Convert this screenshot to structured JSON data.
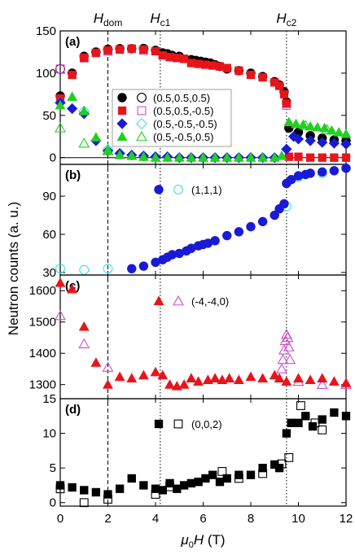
{
  "chart_data": {
    "type": "scatter",
    "xlabel": "μ0H (T)",
    "ylabel": "Neutron counts (a. u.)",
    "xlim": [
      0,
      12
    ],
    "xticks": [
      0,
      2,
      4,
      6,
      8,
      10,
      12
    ],
    "field_markers": [
      {
        "label": "H",
        "sub": "dom",
        "x": 2.0,
        "style": "dashed"
      },
      {
        "label": "H",
        "sub": "c1",
        "x": 4.2,
        "style": "dotted"
      },
      {
        "label": "H",
        "sub": "c2",
        "x": 9.5,
        "style": "dotted"
      }
    ],
    "panels": [
      {
        "label": "(a)",
        "ylim": [
          -8,
          150
        ],
        "yticks": [
          0,
          50,
          100,
          150
        ],
        "zero_line": true,
        "legend": {
          "position": "middle"
        },
        "series": [
          {
            "name": "(0.5,0.5,0.5)",
            "color": "#000000",
            "marker": "circle",
            "filled_x": [
              0,
              0.5,
              1,
              1.5,
              2,
              2.5,
              3,
              3.5,
              4,
              4.3,
              4.5,
              4.7,
              5,
              5.5,
              5.7,
              5.9,
              6.1,
              6.3,
              6.5,
              6.7,
              7,
              7.5,
              8,
              8.5,
              9,
              9.2,
              9.4,
              9.5,
              9.6,
              10,
              10.5,
              11,
              11.5,
              12
            ],
            "filled_y": [
              73,
              100,
              120,
              125,
              128,
              129,
              129,
              129,
              127,
              124,
              123,
              121,
              120,
              116,
              115,
              114,
              113,
              112,
              110,
              108,
              105,
              103,
              100,
              96,
              90,
              86,
              78,
              66,
              35,
              30,
              26,
              23,
              21,
              20
            ],
            "open_x": [
              0,
              2,
              3.5
            ],
            "open_y": [
              105,
              128,
              129
            ]
          },
          {
            "name": "(0.5,0.5,-0.5)",
            "color": "#e8141c",
            "open_color": "#d04cd0",
            "marker": "square",
            "filled_x": [
              0,
              0.5,
              1,
              1.5,
              2,
              2.5,
              3,
              3.5,
              4,
              4.3,
              4.6,
              4.9,
              5.2,
              5.5,
              5.8,
              6.1,
              6.4,
              6.7,
              7,
              7.5,
              8,
              8.5,
              9,
              9.2,
              9.4,
              9.5,
              9.6,
              10,
              10.5,
              11,
              11.5,
              12
            ],
            "filled_y": [
              70,
              98,
              118,
              124,
              127,
              128,
              129,
              128,
              126,
              121,
              119,
              118,
              117,
              112,
              111,
              110,
              109,
              108,
              106,
              103,
              98,
              95,
              89,
              85,
              75,
              64,
              1,
              1,
              0,
              0,
              0,
              0
            ],
            "open_x": [
              0,
              1,
              2,
              3.5,
              9.5
            ],
            "open_y": [
              105,
              118,
              126,
              127,
              62
            ]
          },
          {
            "name": "(0.5,-0.5,-0.5)",
            "color": "#1a1ad6",
            "open_color": "#3fe0e0",
            "marker": "diamond",
            "filled_x": [
              0,
              0.5,
              1,
              1.5,
              2,
              2.5,
              3,
              3.5,
              4,
              4.5,
              5,
              5.5,
              6,
              6.5,
              7,
              7.5,
              8,
              8.5,
              9,
              9.5,
              9.8,
              10,
              10.5,
              11,
              11.5,
              12
            ],
            "filled_y": [
              65,
              58,
              52,
              20,
              8,
              5,
              3,
              2,
              1,
              1,
              0,
              0,
              0,
              0,
              0,
              0,
              0,
              0,
              0,
              10,
              25,
              22,
              20,
              18,
              17,
              16
            ],
            "open_x": [
              0,
              1,
              2
            ],
            "open_y": [
              65,
              55,
              10
            ]
          },
          {
            "name": "(0.5,-0.5,0.5)",
            "color": "#22d022",
            "marker": "triangle",
            "filled_x": [
              0,
              0.5,
              1,
              1.5,
              2,
              2.5,
              3,
              3.5,
              4,
              4.5,
              5,
              5.5,
              6,
              6.5,
              7,
              7.5,
              8,
              8.5,
              9,
              9.3,
              9.6,
              9.9,
              10.2,
              10.5,
              10.8,
              11.1,
              11.4,
              11.7,
              12
            ],
            "filled_y": [
              62,
              72,
              55,
              24,
              9,
              3,
              2,
              1,
              0,
              0,
              0,
              0,
              0,
              0,
              0,
              0,
              0,
              0,
              0,
              2,
              42,
              40,
              39,
              37,
              36,
              35,
              32,
              30,
              28
            ],
            "open_x": [
              0,
              1,
              2,
              10.3,
              11.2
            ],
            "open_y": [
              35,
              17,
              8,
              38,
              33
            ]
          }
        ]
      },
      {
        "label": "(b)",
        "ylim": [
          28,
          115
        ],
        "yticks": [
          30,
          60,
          90
        ],
        "legend": {
          "position": "top-middle"
        },
        "series": [
          {
            "name": "(1,1,1)",
            "color": "#1a1ad6",
            "open_color": "#3fe0e0",
            "marker": "circle",
            "filled_x": [
              3,
              3.5,
              4,
              4.3,
              4.5,
              4.7,
              5,
              5.3,
              5.5,
              5.8,
              6,
              6.2,
              6.5,
              7,
              7.5,
              8,
              8.5,
              9,
              9.2,
              9.4,
              9.5,
              9.7,
              10,
              10.3,
              10.5,
              11,
              11.5,
              12
            ],
            "filled_y": [
              33,
              35,
              38,
              40,
              42,
              44,
              45,
              47,
              49,
              51,
              52,
              53,
              55,
              59,
              62,
              66,
              70,
              75,
              80,
              84,
              100,
              103,
              106,
              107,
              108,
              109,
              110,
              112
            ],
            "open_x": [
              0,
              1,
              2,
              9.5,
              10,
              11
            ],
            "open_y": [
              33,
              32,
              33,
              82,
              105,
              108
            ]
          }
        ]
      },
      {
        "label": "(c)",
        "ylim": [
          1255,
          1650
        ],
        "yticks": [
          1300,
          1400,
          1500,
          1600
        ],
        "legend": {
          "position": "top-middle"
        },
        "series": [
          {
            "name": "(-4,-4,0)",
            "color": "#e8141c",
            "open_color": "#d04cd0",
            "marker": "triangle",
            "filled_x": [
              0,
              0.5,
              1,
              1.5,
              2,
              2.5,
              3,
              3.5,
              4,
              4.3,
              4.6,
              4.9,
              5.2,
              5.5,
              5.8,
              6.2,
              6.5,
              6.8,
              7.1,
              7.5,
              8,
              8.5,
              9,
              9.2,
              9.5,
              10,
              10.5,
              11,
              11.5,
              12
            ],
            "filled_y": [
              1625,
              1605,
              1485,
              1370,
              1300,
              1325,
              1320,
              1330,
              1340,
              1330,
              1300,
              1295,
              1300,
              1320,
              1310,
              1315,
              1320,
              1315,
              1320,
              1315,
              1325,
              1320,
              1330,
              1320,
              1310,
              1320,
              1315,
              1320,
              1310,
              1305
            ],
            "open_x": [
              0,
              1,
              2,
              9.3,
              9.35,
              9.4,
              9.45,
              9.5,
              9.55,
              9.6,
              9.65,
              10,
              11,
              12
            ],
            "open_y": [
              1520,
              1430,
              1355,
              1350,
              1380,
              1410,
              1440,
              1460,
              1450,
              1420,
              1380,
              1310,
              1300,
              1300
            ]
          }
        ]
      },
      {
        "label": "(d)",
        "ylim": [
          -0.5,
          15
        ],
        "yticks": [
          0,
          5,
          10,
          15
        ],
        "legend": {
          "position": "top-middle"
        },
        "series": [
          {
            "name": "(0,0,2)",
            "color": "#000000",
            "marker": "square",
            "filled_x": [
              0,
              0.5,
              1,
              1.5,
              2,
              2.5,
              3,
              3.5,
              4,
              4.3,
              4.6,
              4.9,
              5.2,
              5.5,
              5.8,
              6.1,
              6.4,
              6.7,
              7,
              7.5,
              8,
              8.5,
              9,
              9.2,
              9.5,
              9.7,
              10,
              10.3,
              10.6,
              11,
              11.5,
              12
            ],
            "filled_y": [
              2.5,
              2.2,
              1.8,
              1.5,
              1.2,
              2.0,
              3.5,
              2.5,
              2.0,
              1.8,
              2.8,
              2.0,
              2.5,
              2.8,
              3.0,
              3.5,
              4.0,
              3.0,
              3.5,
              4.0,
              4.0,
              5.0,
              5.5,
              5.0,
              10.0,
              11.5,
              11.5,
              12.5,
              11.0,
              12.0,
              13.0,
              12.5
            ],
            "open_x": [
              0,
              1,
              2,
              4,
              4.6,
              6.8,
              7.5,
              8.5,
              9.3,
              9.6,
              10.1,
              10.7,
              11
            ],
            "open_y": [
              2.0,
              0.0,
              0.5,
              1.2,
              2.3,
              4.5,
              3.5,
              4.2,
              5.6,
              6.5,
              14.0,
              11.5,
              10.5
            ]
          }
        ]
      }
    ]
  }
}
